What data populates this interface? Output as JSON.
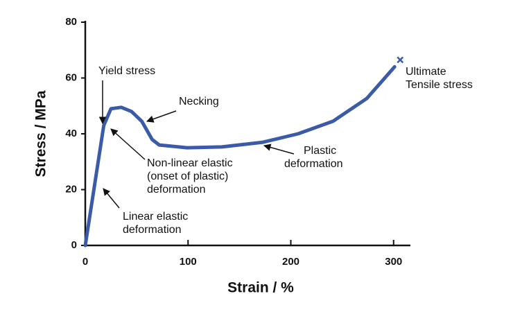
{
  "chart_data": {
    "type": "line",
    "x_label": "Strain / %",
    "y_label": "Stress / MPa",
    "x": [
      0,
      18,
      25,
      35,
      45,
      55,
      65,
      72,
      99,
      133,
      173,
      207,
      241,
      274,
      301
    ],
    "series": [
      {
        "color": "#3b5ba9",
        "values": [
          0,
          43,
          49,
          49.5,
          48,
          44.5,
          38,
          36,
          35,
          35.3,
          37,
          40,
          44.5,
          52.7,
          64
        ]
      }
    ],
    "xlim": [
      0,
      315
    ],
    "ylim": [
      0,
      80
    ],
    "xticks": [
      0,
      100,
      200,
      300
    ],
    "yticks": [
      0,
      20,
      40,
      60,
      80
    ],
    "annotations": [
      {
        "lines": [
          "Yield stress"
        ]
      },
      {
        "lines": [
          "Necking"
        ]
      },
      {
        "lines": [
          "Non-linear elastic",
          "(onset of plastic)",
          "deformation"
        ]
      },
      {
        "lines": [
          "Linear elastic",
          "deformation"
        ]
      },
      {
        "lines": [
          "Plastic",
          "deformation"
        ]
      },
      {
        "lines": [
          "Ultimate",
          "Tensile stress"
        ]
      }
    ]
  }
}
